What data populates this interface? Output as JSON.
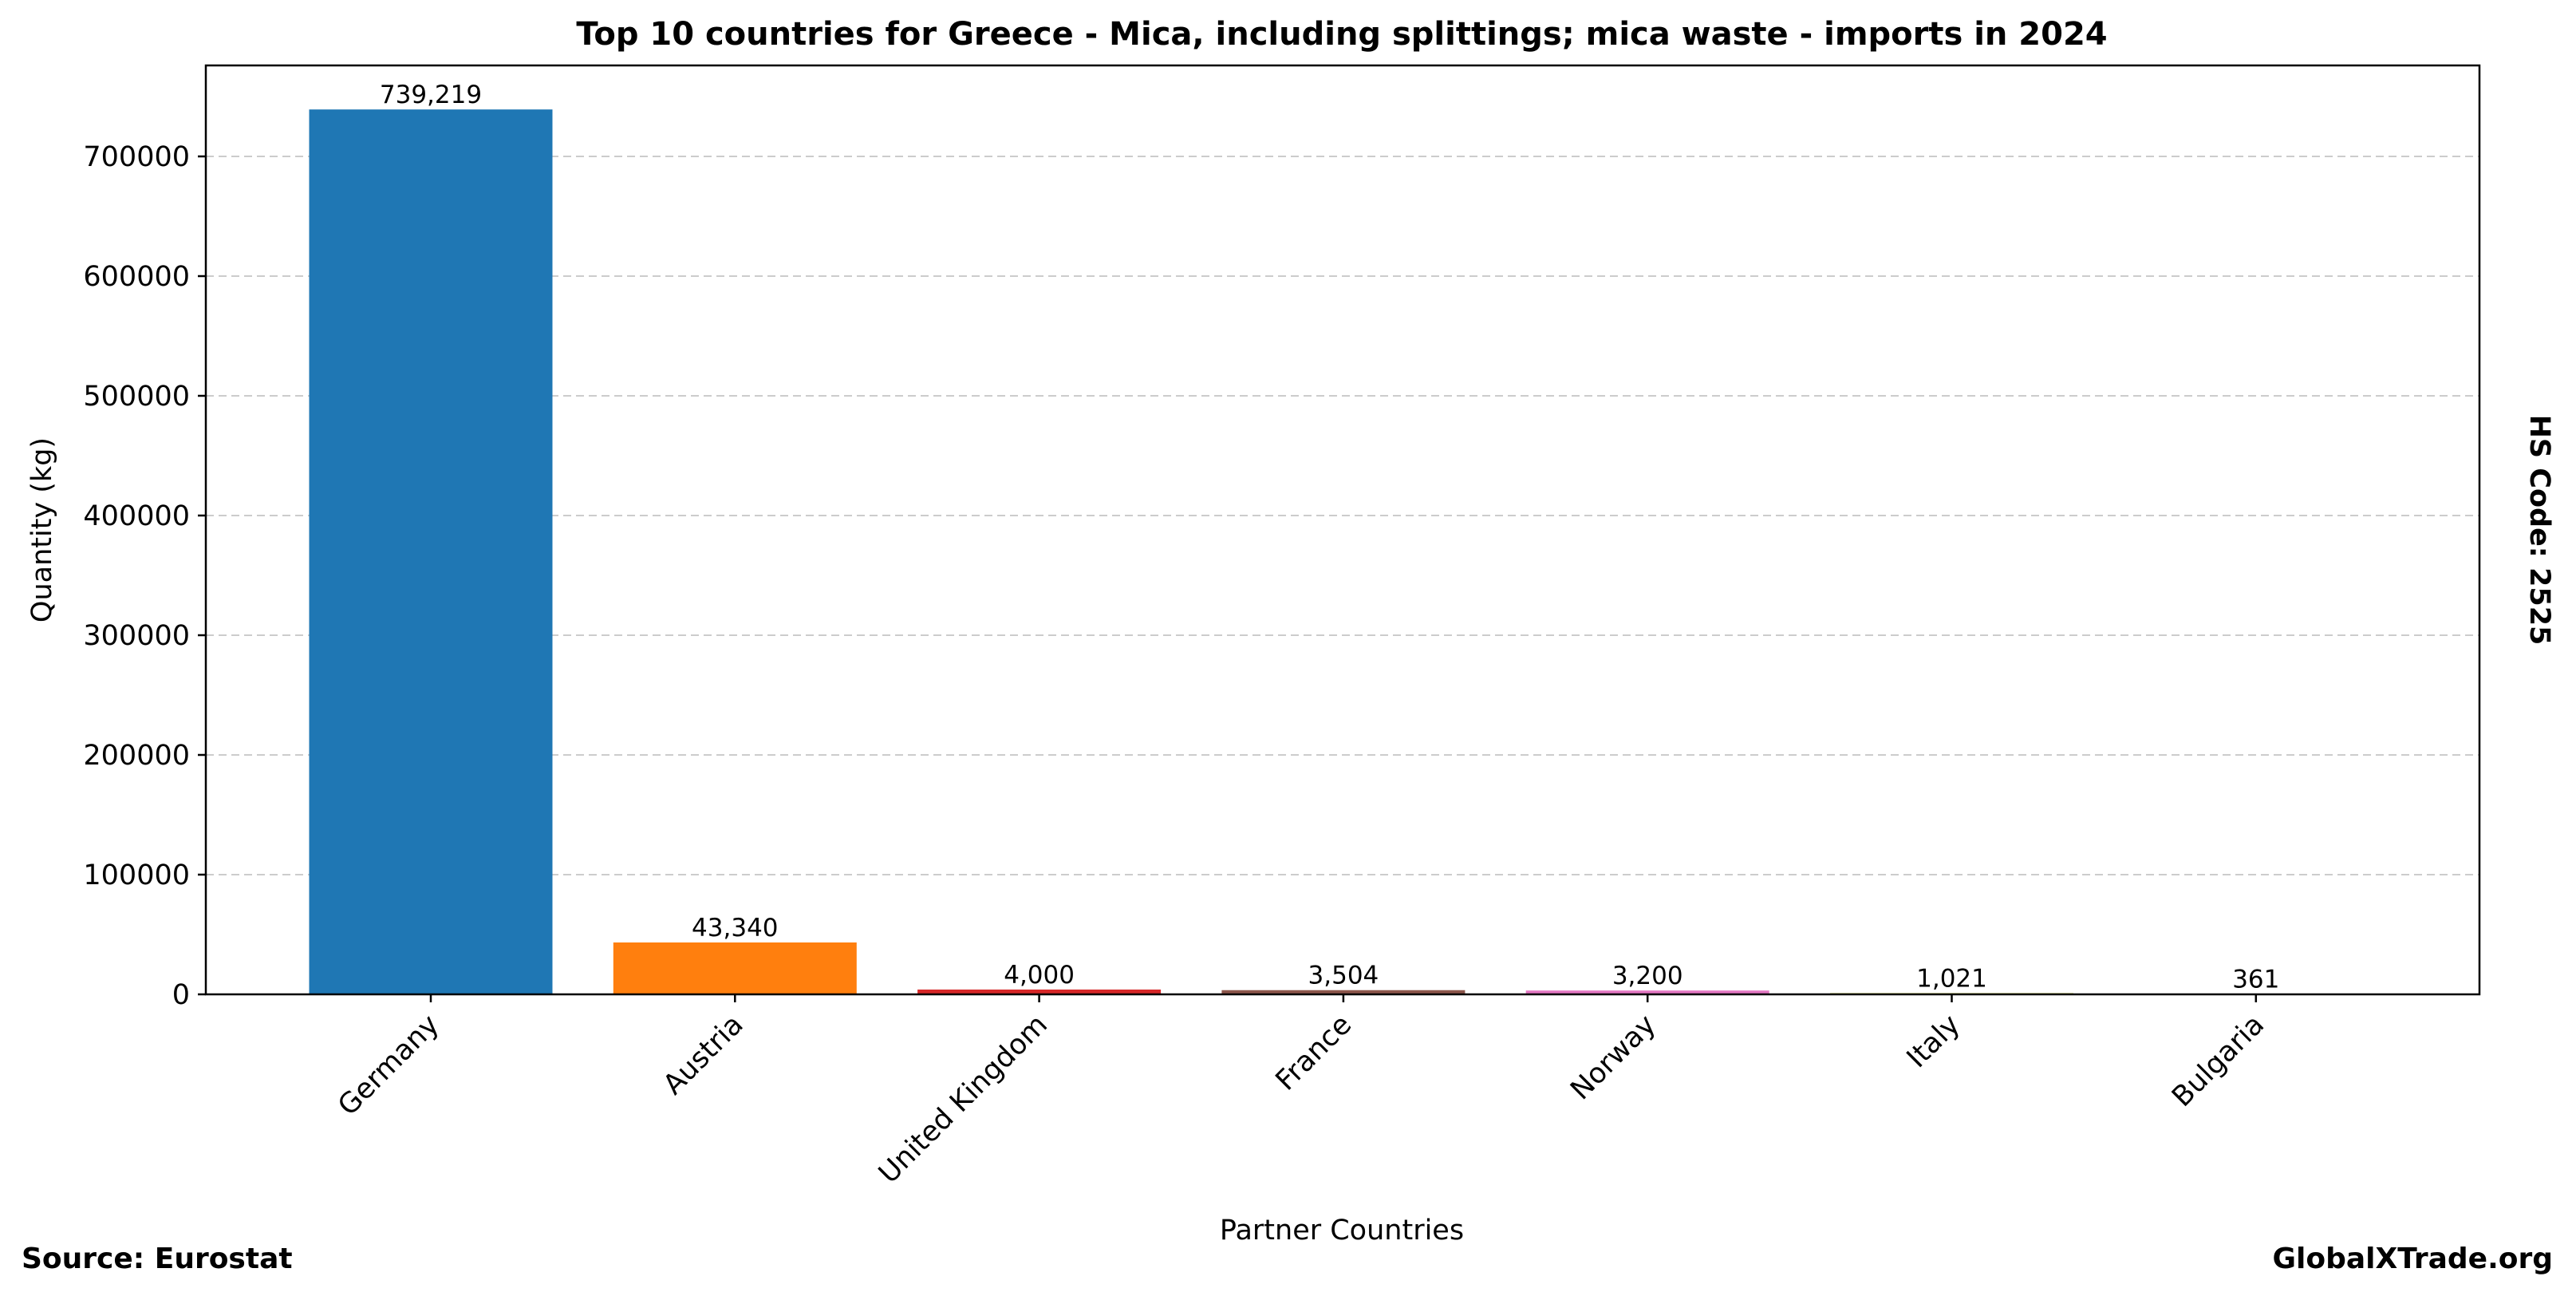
{
  "chart_data": {
    "type": "bar",
    "title": "Top 10 countries for Greece - Mica, including splittings; mica waste - imports in 2024",
    "xlabel": "Partner Countries",
    "ylabel": "Quantity (kg)",
    "ylim": [
      0,
      776000
    ],
    "yticks": [
      0,
      100000,
      200000,
      300000,
      400000,
      500000,
      600000,
      700000
    ],
    "ytick_labels": [
      "0",
      "100000",
      "200000",
      "300000",
      "400000",
      "500000",
      "600000",
      "700000"
    ],
    "grid": true,
    "categories": [
      "Germany",
      "Austria",
      "United Kingdom",
      "France",
      "Norway",
      "Italy",
      "Bulgaria"
    ],
    "values": [
      739219,
      43340,
      4000,
      3504,
      3200,
      1021,
      361
    ],
    "value_labels": [
      "739,219",
      "43,340",
      "4,000",
      "3,504",
      "3,200",
      "1,021",
      "361"
    ],
    "colors": [
      "#1f77b4",
      "#ff7f0e",
      "#d62728",
      "#8c564b",
      "#e377c2",
      "#bcbd22",
      "#17becf"
    ]
  },
  "side_label": "HS Code: 2525",
  "footer": {
    "source": "Source: Eurostat",
    "brand": "GlobalXTrade.org"
  }
}
